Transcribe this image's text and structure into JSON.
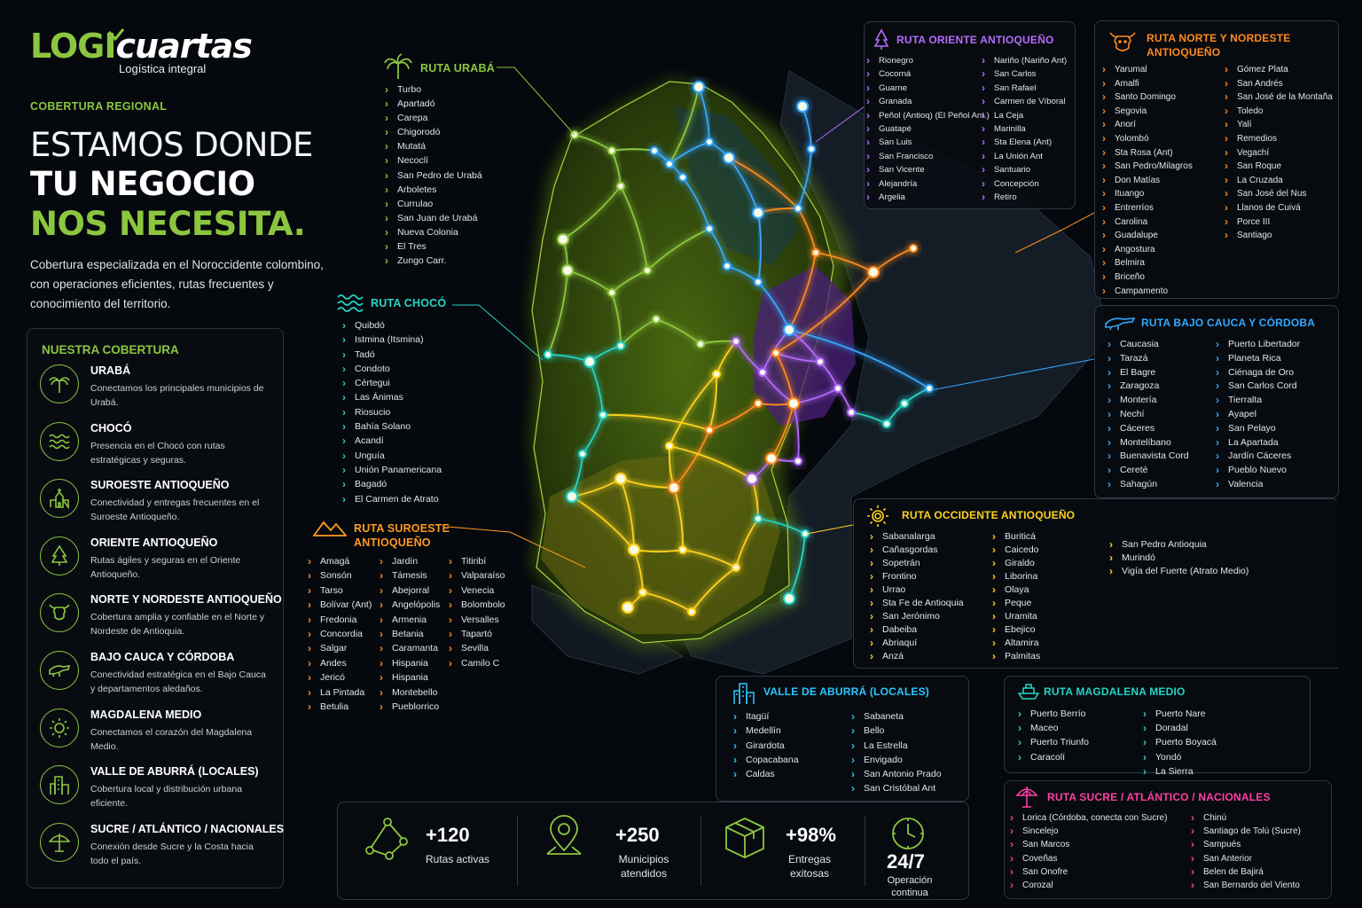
{
  "brand": {
    "logo_main": "LOGI",
    "logo_accent": "cuartas",
    "tagline": "Logística integral"
  },
  "eyebrow": "COBERTURA REGIONAL",
  "headline": {
    "line1": "ESTAMOS DONDE",
    "line2": "TU NEGOCIO",
    "line3": "NOS NECESITA."
  },
  "intro": "Cobertura especializada en el Noroccidente colombino, con operaciones eficientes, rutas frecuentes y conocimiento del territorio.",
  "coverage": {
    "title": "NUESTRA COBERTURA",
    "items": [
      {
        "title": "URABÁ",
        "desc": "Conectamos los principales municipios de Urabá.",
        "icon": "palm-icon"
      },
      {
        "title": "CHOCÓ",
        "desc": "Presencia en el Chocó con rutas estratégicas y seguras.",
        "icon": "waves-icon"
      },
      {
        "title": "SUROESTE ANTIOQUEÑO",
        "desc": "Conectividad y entregas frecuentes en el Suroeste Antioqueño.",
        "icon": "church-icon"
      },
      {
        "title": "ORIENTE ANTIOQUEÑO",
        "desc": "Rutas ágiles y seguras en el Oriente Antioqueño.",
        "icon": "tree-icon"
      },
      {
        "title": "NORTE Y NORDESTE ANTIOQUEÑO",
        "desc": "Cobertura amplia y confiable en el Norte y Nordeste de Antioquia.",
        "icon": "cow-icon"
      },
      {
        "title": "BAJO CAUCA Y CÓRDOBA",
        "desc": "Conectividad estratégica en el Bajo Cauca y departamentos aledaños.",
        "icon": "crocodile-icon"
      },
      {
        "title": "MAGDALENA MEDIO",
        "desc": "Conectamos el corazón del Magdalena Medio.",
        "icon": "sun-icon"
      },
      {
        "title": "VALLE DE ABURRÁ (LOCALES)",
        "desc": "Cobertura local y distribución urbana eficiente.",
        "icon": "buildings-icon"
      },
      {
        "title": "SUCRE / ATLÁNTICO / NACIONALES",
        "desc": "Conexión desde Sucre y la Costa hacia todo el país.",
        "icon": "umbrella-icon"
      }
    ]
  },
  "routes": {
    "uraba": {
      "title": "RUTA URABÁ",
      "color": "#8cc63f",
      "icon": "palm-icon",
      "col1": [
        "Turbo",
        "Apartadó",
        "Carepa",
        "Chigorodó",
        "Mutatá",
        "Necoclí",
        "San Pedro de Urabá",
        "Arboletes",
        "Currulao",
        "San Juan de Urabá",
        "Nueva Colonia",
        "El Tres",
        "Zungo Carr."
      ]
    },
    "choco": {
      "title": "RUTA CHOCÓ",
      "color": "#25d4c6",
      "icon": "waves-icon",
      "col1": [
        "Quibdó",
        "Istmina (Itsmina)",
        "Tadó",
        "Condoto",
        "Cértegui",
        "Las Ánimas",
        "Riosucio",
        "Bahía Solano",
        "Acandí",
        "Unguía",
        "Unión Panamericana",
        "Bagadó",
        "El Carmen de Atrato"
      ]
    },
    "suroeste": {
      "title1": "RUTA SUROESTE",
      "title2": "ANTIOQUEÑO",
      "color": "#ff9a1f",
      "icon": "mountains-icon",
      "col1": [
        "Amagá",
        "Sonsón",
        "Tarso",
        "Bolívar (Ant)",
        "Fredonia",
        "Concordia",
        "Salgar",
        "Andes",
        "Jericó",
        "La Pintada",
        "Betulia"
      ],
      "col2": [
        "Jardín",
        "Támesis",
        "Abejorral",
        "Angelópolis",
        "Armenia",
        "Betania",
        "Caramanta",
        "Hispania",
        "Hispania",
        "Montebello",
        "Pueblorrico"
      ],
      "col3": [
        "Titiribí",
        "Valparaíso",
        "Venecia",
        "Bolombolo",
        "Versalles",
        "Tapartó",
        "Sevilla",
        "Camilo C"
      ]
    },
    "oriente": {
      "title": "RUTA ORIENTE ANTIOQUEÑO",
      "color": "#b46bff",
      "icon": "tree-icon",
      "col1": [
        "Rionegro",
        "Cocorná",
        "Guarne",
        "Granada",
        "Peñol (Antioq) (El Peñol Ant.)",
        "Guatapé",
        "San Luis",
        "San Francisco",
        "San Vicente",
        "Alejandría",
        "Argelia"
      ],
      "col2": [
        "Nariño (Nariño Ant)",
        "San Carlos",
        "San Rafael",
        "Carmen de Víboral",
        "La Ceja",
        "Marinilla",
        "Sta Elena (Ant)",
        "La Unión Ant",
        "Santuario",
        "Concepción",
        "Retiro"
      ]
    },
    "norte": {
      "title1": "RUTA NORTE Y NORDESTE",
      "title2": "ANTIOQUEÑO",
      "color": "#ff8a1f",
      "icon": "cow-icon",
      "col1": [
        "Yarumal",
        "Amalfi",
        "Santo Domingo",
        "Segovia",
        "Anorí",
        "Yolombó",
        "Sta Rosa (Ant)",
        "San Pedro/Milagros",
        "Don Matías",
        "Ituango",
        "Entrerríos",
        "Carolina",
        "Guadalupe",
        "Angostura",
        "Belmira",
        "Briceño",
        "Campamento"
      ],
      "col2": [
        "Gómez Plata",
        "San Andrés",
        "San José de la Montaña",
        "Toledo",
        "Yalí",
        "Remedios",
        "Vegachí",
        "San Roque",
        "La Cruzada",
        "San José del Nus",
        "Llanos de Cuivá",
        "Porce III",
        "Santiago"
      ]
    },
    "bajocauca": {
      "title": "RUTA BAJO CAUCA Y CÓRDOBA",
      "color": "#36a8ff",
      "icon": "crocodile-icon",
      "col1": [
        "Caucasia",
        "Tarazá",
        "El Bagre",
        "Zaragoza",
        "Montería",
        "Nechí",
        "Cáceres",
        "Montelíbano",
        "Buenavista Cord",
        "Cereté",
        "Sahagún"
      ],
      "col2": [
        "Puerto Libertador",
        "Planeta Rica",
        "Ciénaga de Oro",
        "San Carlos Cord",
        "Tierralta",
        "Ayapel",
        "San Pelayo",
        "La Apartada",
        "Jardín Cáceres",
        "Pueblo Nuevo",
        "Valencia"
      ]
    },
    "occidente": {
      "title": "RUTA OCCIDENTE ANTIOQUEÑO",
      "color": "#ffd21f",
      "icon": "sun-icon",
      "col1": [
        "Sabanalarga",
        "Cañasgordas",
        "Sopetrán",
        "Frontino",
        "Urrao",
        "Sta Fe de Antioquia",
        "San Jerónimo",
        "Dabeiba",
        "Abriaquí",
        "Anzá"
      ],
      "col2": [
        "Buriticá",
        "Caicedo",
        "Giraldo",
        "Liborina",
        "Olaya",
        "Peque",
        "Uramita",
        "Ebejico",
        "Altamira",
        "Palmitas"
      ],
      "col3": [
        "San Pedro Antioquia",
        "Murindó",
        "Vigía del Fuerte (Atrato Medio)"
      ]
    },
    "aburra": {
      "title": "VALLE DE ABURRÁ (LOCALES)",
      "color": "#2cc7ff",
      "icon": "buildings-icon",
      "col1": [
        "Itagüí",
        "Medellín",
        "Girardota",
        "Copacabana",
        "Caldas"
      ],
      "col2": [
        "Sabaneta",
        "Bello",
        "La Estrella",
        "Envigado",
        "San Antonio Prado",
        "San Cristóbal Ant"
      ]
    },
    "magdalena": {
      "title": "RUTA MAGDALENA MEDIO",
      "color": "#25d4c6",
      "icon": "ship-icon",
      "col1": [
        "Puerto Berrío",
        "Maceo",
        "Puerto Triunfo",
        "Caracolí"
      ],
      "col2": [
        "Puerto Nare",
        "Doradal",
        "Puerto Boyacá",
        "Yondó",
        "La Sierra"
      ]
    },
    "sucre": {
      "title": "RUTA SUCRE / ATLÁNTICO / NACIONALES",
      "color": "#ff3fa6",
      "icon": "umbrella-icon",
      "col1": [
        "Lorica (Córdoba, conecta con Sucre)",
        "Sincelejo",
        "San Marcos",
        "Coveñas",
        "San Onofre",
        "Corozal"
      ],
      "col2": [
        "Chinú",
        "Santiago de Tolú (Sucre)",
        "Sampués",
        "San Anterior",
        "Belen de Bajirá",
        "San Bernardo del Viento"
      ]
    }
  },
  "stats": [
    {
      "value": "+120",
      "label": "Rutas activas",
      "icon": "network-icon"
    },
    {
      "value": "+250",
      "label": "Municipios atendidos",
      "icon": "map-pin-icon"
    },
    {
      "value": "+98%",
      "label": "Entregas exitosas",
      "icon": "box-icon"
    },
    {
      "value": "24/7",
      "label": "Operación continua",
      "icon": "clock-icon"
    }
  ]
}
